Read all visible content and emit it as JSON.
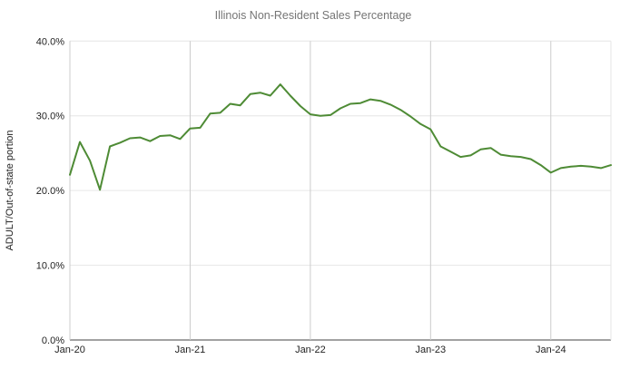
{
  "title": "Illinois Non-Resident Sales Percentage",
  "colors": {
    "line": "#4e8b35",
    "title_text": "#757575",
    "axis_text": "#222222",
    "h_gridline": "#e6e6e6",
    "v_gridline": "#cccccc",
    "baseline": "#444444",
    "right_border": "#e6e6e6"
  },
  "y_axis": {
    "label": "ADULT/Out-of-state portion",
    "ticks": [
      "0.0%",
      "10.0%",
      "20.0%",
      "30.0%",
      "40.0%"
    ],
    "tick_values": [
      0,
      10,
      20,
      30,
      40
    ]
  },
  "x_axis": {
    "ticks": [
      "Jan-20",
      "Jan-21",
      "Jan-22",
      "Jan-23",
      "Jan-24"
    ]
  },
  "chart_data": {
    "type": "line",
    "title": "Illinois Non-Resident Sales Percentage",
    "xlabel": "",
    "ylabel": "ADULT/Out-of-state portion",
    "ylim": [
      0,
      40
    ],
    "grid": true,
    "legend_position": "none",
    "x": [
      "Jan-20",
      "Feb-20",
      "Mar-20",
      "Apr-20",
      "May-20",
      "Jun-20",
      "Jul-20",
      "Aug-20",
      "Sep-20",
      "Oct-20",
      "Nov-20",
      "Dec-20",
      "Jan-21",
      "Feb-21",
      "Mar-21",
      "Apr-21",
      "May-21",
      "Jun-21",
      "Jul-21",
      "Aug-21",
      "Sep-21",
      "Oct-21",
      "Nov-21",
      "Dec-21",
      "Jan-22",
      "Feb-22",
      "Mar-22",
      "Apr-22",
      "May-22",
      "Jun-22",
      "Jul-22",
      "Aug-22",
      "Sep-22",
      "Oct-22",
      "Nov-22",
      "Dec-22",
      "Jan-23",
      "Feb-23",
      "Mar-23",
      "Apr-23",
      "May-23",
      "Jun-23",
      "Jul-23",
      "Aug-23",
      "Sep-23",
      "Oct-23",
      "Nov-23",
      "Dec-23",
      "Jan-24",
      "Feb-24",
      "Mar-24",
      "Apr-24",
      "May-24",
      "Jun-24",
      "Jul-24"
    ],
    "series": [
      {
        "name": "ADULT/Out-of-state portion",
        "values": [
          22.1,
          26.5,
          24.0,
          20.1,
          25.9,
          26.4,
          27.0,
          27.1,
          26.6,
          27.3,
          27.4,
          26.9,
          28.3,
          28.4,
          30.3,
          30.4,
          31.6,
          31.4,
          32.9,
          33.1,
          32.7,
          34.2,
          32.7,
          31.3,
          30.2,
          30.0,
          30.1,
          31.0,
          31.6,
          31.7,
          32.2,
          32.0,
          31.5,
          30.8,
          29.9,
          28.9,
          28.2,
          25.9,
          25.2,
          24.5,
          24.7,
          25.5,
          25.7,
          24.8,
          24.6,
          24.5,
          24.2,
          23.4,
          22.4,
          23.0,
          23.2,
          23.3,
          23.2,
          23.0,
          23.4
        ]
      }
    ]
  }
}
